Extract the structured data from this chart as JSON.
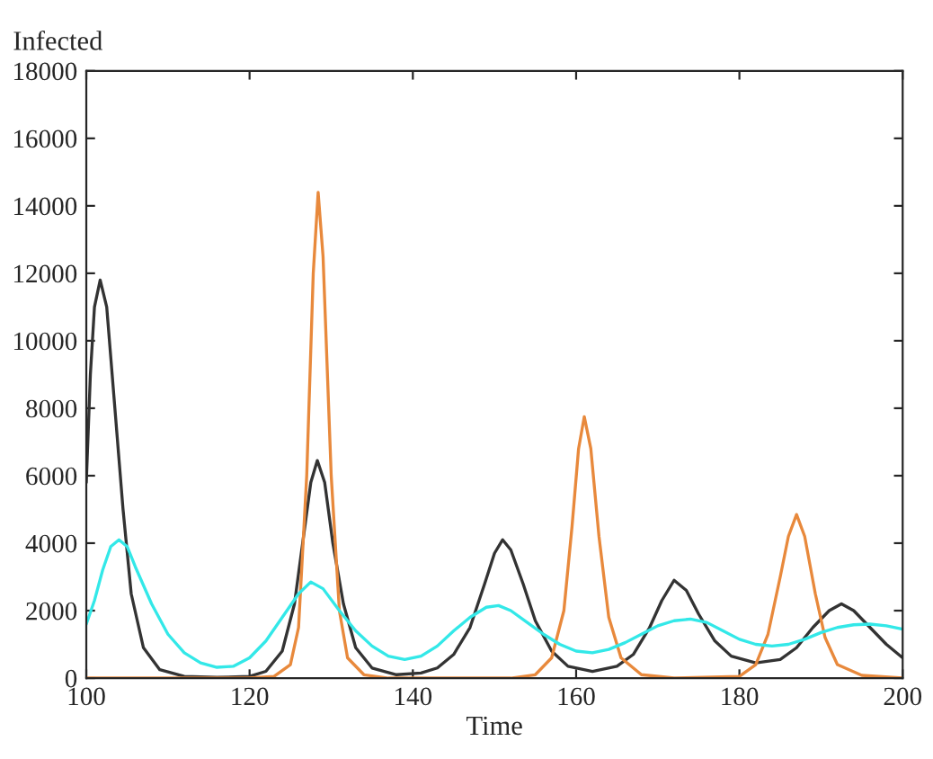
{
  "chart_data": {
    "type": "line",
    "xlabel": "Time",
    "ylabel": "Infected",
    "xlim": [
      100,
      200
    ],
    "xticks": [
      100,
      120,
      140,
      160,
      180,
      200
    ],
    "ylim": [
      0,
      18000
    ],
    "yticks": [
      0,
      2000,
      4000,
      6000,
      8000,
      10000,
      12000,
      14000,
      16000,
      18000
    ],
    "series": [
      {
        "color": "#333333",
        "x": [
          100,
          100.5,
          101,
          101.7,
          102.5,
          103.5,
          104.5,
          105.5,
          107,
          109,
          112,
          116,
          120,
          122,
          124,
          125.5,
          126.5,
          127.5,
          128.3,
          129.2,
          130.2,
          131.5,
          133,
          135,
          138,
          141,
          143,
          145,
          147,
          148.8,
          150,
          151,
          152,
          153.5,
          155,
          157,
          159,
          162,
          165,
          167,
          169,
          170.5,
          172,
          173.5,
          175,
          177,
          179,
          182,
          185,
          187,
          189,
          191,
          192.5,
          194,
          196,
          198,
          200
        ],
        "values": [
          5800,
          9000,
          11000,
          11800,
          11000,
          8000,
          5000,
          2500,
          900,
          250,
          50,
          20,
          50,
          200,
          800,
          2200,
          4000,
          5800,
          6450,
          5800,
          4000,
          2200,
          900,
          300,
          100,
          150,
          300,
          700,
          1500,
          2800,
          3700,
          4100,
          3800,
          2800,
          1700,
          800,
          350,
          200,
          350,
          700,
          1500,
          2300,
          2900,
          2600,
          1900,
          1100,
          650,
          450,
          550,
          900,
          1500,
          2000,
          2200,
          2000,
          1500,
          1000,
          600
        ]
      },
      {
        "color": "#e8893c",
        "x": [
          100,
          120,
          123,
          125,
          126,
          127,
          127.8,
          128.4,
          129,
          130,
          131,
          132,
          134,
          137,
          152,
          155,
          157,
          158.5,
          159.5,
          160.3,
          161,
          161.8,
          162.8,
          164,
          165.5,
          168,
          172,
          180,
          182,
          183.5,
          185,
          186,
          187,
          188,
          189.3,
          190.5,
          192,
          195,
          200
        ],
        "values": [
          0,
          0,
          50,
          400,
          1500,
          6000,
          12000,
          14400,
          12500,
          6000,
          2000,
          600,
          100,
          0,
          0,
          100,
          600,
          2000,
          4500,
          6800,
          7750,
          6800,
          4200,
          1800,
          600,
          100,
          0,
          50,
          400,
          1300,
          3000,
          4200,
          4850,
          4200,
          2500,
          1200,
          400,
          80,
          0
        ]
      },
      {
        "color": "#33e8e8",
        "x": [
          100,
          101,
          102,
          103,
          104,
          105,
          106,
          108,
          110,
          112,
          114,
          116,
          118,
          120,
          122,
          124,
          126,
          127.5,
          129,
          131,
          133,
          135,
          137,
          139,
          141,
          143,
          145,
          147,
          149,
          150.5,
          152,
          154,
          156,
          158,
          160,
          162,
          164,
          166,
          168,
          170,
          172,
          174,
          176,
          178,
          180,
          182,
          184,
          186,
          188,
          190,
          192,
          194,
          196,
          198,
          200
        ],
        "values": [
          1600,
          2300,
          3200,
          3900,
          4100,
          3900,
          3300,
          2200,
          1300,
          750,
          450,
          320,
          350,
          600,
          1100,
          1800,
          2500,
          2850,
          2650,
          2000,
          1400,
          950,
          650,
          550,
          650,
          950,
          1400,
          1800,
          2100,
          2150,
          2000,
          1650,
          1300,
          1000,
          800,
          750,
          850,
          1050,
          1300,
          1550,
          1700,
          1750,
          1650,
          1400,
          1150,
          1000,
          950,
          1000,
          1150,
          1350,
          1500,
          1580,
          1600,
          1550,
          1450
        ]
      }
    ]
  }
}
